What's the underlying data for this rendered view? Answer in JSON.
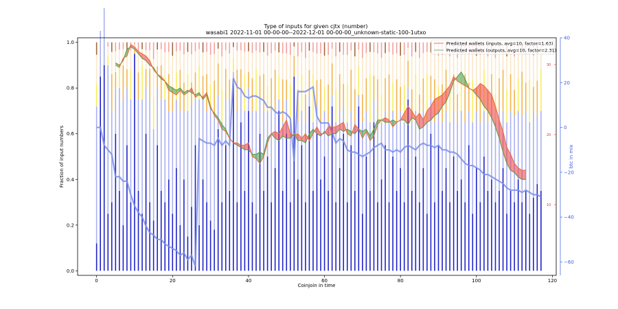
{
  "chart_data": {
    "type": "bar",
    "title": "Type of inputs for given cjtx (number)",
    "subtitle": "wasabi1 2022-11-01 00-00-00--2022-12-01 00-00-00_unknown-static-100-1utxo",
    "xlabel": "Coinjoin in time",
    "ylabel": "Fraction of input numbers",
    "ylabel_right": "btc in mix",
    "xlim": [
      -5,
      121
    ],
    "ylim": [
      -0.02,
      1.02
    ],
    "ylim_right": [
      -66,
      40
    ],
    "x_ticks": [
      "0",
      "20",
      "40",
      "60",
      "80",
      "100",
      "120"
    ],
    "y_ticks": [
      "0.0",
      "0.2",
      "0.4",
      "0.6",
      "0.8",
      "1.0"
    ],
    "y_ticks_right": [
      "−60",
      "−40",
      "−20",
      "0",
      "20",
      "40"
    ],
    "y_ticks_right_inner": [
      "30",
      "20",
      "10"
    ],
    "legend": [
      {
        "label": "Predicted wallets (inputs, avg=10, factor=1.63)",
        "color": "#f08c6c"
      },
      {
        "label": "Predicted wallets (outputs, avg=10, factor=2.31)",
        "color": "#8bc58b"
      }
    ],
    "bar_colors": {
      "fresh": "#1d22c8",
      "remixed": "#aab0f0",
      "mid": "#f7ed5a",
      "orange": "#f2b34a",
      "light": "#fbe7c8",
      "pink": "#f2a0a0",
      "brown": "#a0683a"
    },
    "line_colors": {
      "btc_line": "#7b8ee6",
      "inputs": "#e8703a",
      "outputs": "#5f9a4a"
    },
    "n": 118,
    "fresh": [
      0.12,
      0.85,
      0.9,
      0.25,
      0.3,
      0.6,
      0.35,
      0.2,
      0.55,
      0.3,
      0.95,
      0.35,
      0.25,
      0.6,
      0.3,
      0.22,
      0.55,
      0.35,
      0.3,
      0.4,
      0.25,
      0.45,
      0.2,
      0.4,
      0.15,
      0.28,
      0.55,
      0.2,
      0.4,
      0.3,
      0.22,
      0.18,
      0.62,
      0.3,
      0.55,
      0.35,
      0.82,
      0.3,
      0.65,
      0.35,
      0.7,
      0.3,
      0.25,
      0.6,
      0.35,
      0.5,
      0.3,
      0.45,
      0.7,
      0.35,
      0.6,
      0.3,
      0.85,
      0.4,
      0.55,
      0.3,
      0.72,
      0.35,
      0.6,
      0.4,
      0.5,
      0.35,
      0.72,
      0.3,
      0.45,
      0.6,
      0.3,
      0.55,
      0.35,
      0.72,
      0.25,
      0.5,
      0.35,
      0.65,
      0.3,
      0.4,
      0.55,
      0.3,
      0.5,
      0.35,
      0.45,
      0.3,
      0.75,
      0.35,
      0.5,
      0.3,
      0.45,
      0.25,
      0.6,
      0.3,
      0.55,
      0.35,
      0.45,
      0.3,
      0.5,
      0.35,
      0.4,
      0.3,
      0.55,
      0.25,
      0.45,
      0.3,
      0.5,
      0.35,
      0.4,
      0.3,
      0.35,
      0.45,
      0.25,
      0.35,
      0.3,
      0.4,
      0.3,
      0.35,
      0.25,
      0.32,
      0.38,
      0.35
    ],
    "remix": [
      0.6,
      0.2,
      0.25,
      0.65,
      0.4,
      0.2,
      0.45,
      0.55,
      0.25,
      0.45,
      0.0,
      0.4,
      0.5,
      0.2,
      0.45,
      0.4,
      0.25,
      0.4,
      0.45,
      0.3,
      0.45,
      0.3,
      0.5,
      0.3,
      0.55,
      0.45,
      0.2,
      0.55,
      0.35,
      0.4,
      0.5,
      0.5,
      0.15,
      0.35,
      0.2,
      0.4,
      0.05,
      0.4,
      0.15,
      0.35,
      0.1,
      0.4,
      0.45,
      0.15,
      0.35,
      0.2,
      0.4,
      0.25,
      0.05,
      0.3,
      0.15,
      0.35,
      0.0,
      0.25,
      0.15,
      0.35,
      0.05,
      0.3,
      0.12,
      0.25,
      0.2,
      0.3,
      0.05,
      0.35,
      0.25,
      0.12,
      0.35,
      0.15,
      0.3,
      0.05,
      0.4,
      0.2,
      0.3,
      0.1,
      0.35,
      0.25,
      0.15,
      0.35,
      0.2,
      0.3,
      0.25,
      0.35,
      0.05,
      0.3,
      0.2,
      0.35,
      0.25,
      0.4,
      0.15,
      0.35,
      0.15,
      0.3,
      0.25,
      0.35,
      0.2,
      0.3,
      0.3,
      0.35,
      0.15,
      0.4,
      0.25,
      0.35,
      0.2,
      0.3,
      0.3,
      0.35,
      0.35,
      0.25,
      0.4,
      0.35,
      0.38,
      0.3,
      0.38,
      0.35,
      0.4,
      0.38,
      0.3,
      0.35
    ],
    "btc_line": [
      0,
      0,
      -8,
      -10,
      -12,
      -22,
      -22,
      -24,
      -24,
      -30,
      -35,
      -38,
      -40,
      -44,
      -47,
      -48,
      -50,
      -50,
      -52,
      -53,
      -54,
      -55,
      -57,
      -56,
      -59,
      -57,
      -62,
      -5,
      -6,
      -7,
      -7,
      -8,
      -5,
      -8,
      -6,
      -8,
      22,
      18,
      17,
      14,
      13,
      14,
      14,
      13,
      12,
      9,
      9,
      7,
      6,
      7,
      6,
      4,
      -15,
      16,
      16,
      16,
      17,
      18,
      5,
      2,
      2,
      2,
      -2,
      -7,
      -5,
      -6,
      -10,
      -11,
      -11,
      -12,
      -13,
      -12,
      -11,
      -9,
      -8,
      -7,
      -10,
      -10,
      -11,
      -10,
      -11,
      -9,
      -8,
      -9,
      -10,
      -8,
      -7,
      -8,
      -8,
      -9,
      -8,
      -10,
      -10,
      -11,
      -11,
      -12,
      -14,
      -16,
      -17,
      -17,
      -18,
      -19,
      -21,
      -21,
      -22,
      -23,
      -24,
      -25,
      -27,
      -28,
      -28,
      -28,
      -29,
      -28,
      -29,
      -30,
      -30,
      -31
    ],
    "inputs_line": [
      null,
      null,
      null,
      null,
      null,
      0.9,
      0.89,
      0.93,
      0.94,
      0.99,
      0.98,
      0.96,
      0.95,
      0.94,
      0.92,
      0.88,
      0.86,
      0.85,
      0.83,
      0.79,
      0.78,
      0.77,
      0.79,
      0.77,
      0.78,
      0.8,
      0.76,
      0.77,
      0.76,
      0.78,
      0.72,
      0.68,
      0.66,
      0.62,
      0.61,
      0.58,
      0.56,
      0.56,
      0.55,
      0.55,
      0.56,
      0.5,
      0.49,
      0.47,
      0.5,
      0.56,
      0.6,
      0.61,
      0.6,
      0.63,
      0.66,
      0.6,
      0.59,
      0.6,
      0.58,
      0.6,
      0.57,
      0.6,
      0.63,
      0.6,
      0.6,
      0.63,
      0.63,
      0.63,
      0.64,
      0.65,
      0.6,
      0.59,
      0.64,
      0.62,
      0.58,
      0.61,
      0.57,
      0.59,
      0.64,
      0.66,
      0.67,
      0.66,
      0.63,
      0.65,
      0.66,
      0.69,
      0.72,
      0.7,
      0.67,
      0.69,
      0.66,
      0.7,
      0.72,
      0.75,
      0.76,
      0.77,
      0.79,
      0.81,
      0.85,
      0.83,
      0.82,
      0.81,
      0.8,
      0.79,
      0.8,
      0.82,
      0.81,
      0.79,
      0.77,
      0.72,
      0.66,
      0.61,
      0.54,
      0.51,
      0.47,
      0.45,
      0.44,
      0.44
    ],
    "outputs_line": [
      null,
      null,
      null,
      null,
      null,
      0.91,
      0.9,
      0.92,
      0.97,
      0.98,
      0.97,
      0.95,
      0.93,
      0.92,
      0.9,
      0.89,
      0.86,
      0.84,
      0.83,
      0.81,
      0.8,
      0.79,
      0.8,
      0.78,
      0.79,
      0.78,
      0.77,
      0.78,
      0.75,
      0.77,
      0.71,
      0.69,
      0.67,
      0.64,
      0.62,
      0.58,
      0.56,
      0.55,
      0.54,
      0.53,
      0.53,
      0.51,
      0.51,
      0.52,
      0.51,
      0.58,
      0.6,
      0.58,
      0.57,
      0.59,
      0.58,
      0.58,
      0.6,
      0.57,
      0.57,
      0.56,
      0.6,
      0.62,
      0.6,
      0.59,
      0.61,
      0.59,
      0.6,
      0.6,
      0.62,
      0.61,
      0.62,
      0.61,
      0.6,
      0.62,
      0.61,
      0.62,
      0.59,
      0.62,
      0.66,
      0.66,
      0.65,
      0.65,
      0.66,
      0.65,
      0.66,
      0.66,
      0.64,
      0.67,
      0.66,
      0.62,
      0.63,
      0.65,
      0.66,
      0.68,
      0.69,
      0.72,
      0.74,
      0.78,
      0.83,
      0.85,
      0.87,
      0.84,
      0.8,
      0.79,
      0.77,
      0.75,
      0.72,
      0.7,
      0.67,
      0.63,
      0.58,
      0.52,
      0.47,
      0.44,
      0.43,
      0.41,
      0.4,
      0.4
    ]
  }
}
